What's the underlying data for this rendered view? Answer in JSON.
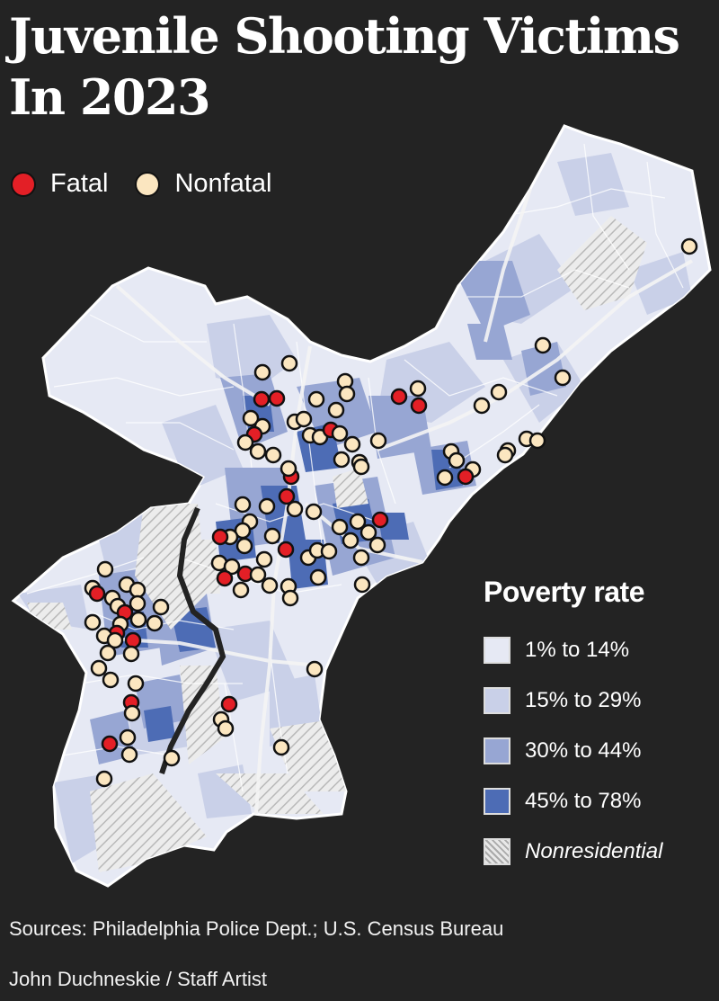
{
  "title_line1": "Juvenile Shooting Victims",
  "title_line2": "In 2023",
  "legend": {
    "fatal_label": "Fatal",
    "nonfatal_label": "Nonfatal",
    "fatal_color": "#e31f26",
    "nonfatal_color": "#fbe6c0"
  },
  "poverty": {
    "title": "Poverty rate",
    "items": [
      {
        "label": "1% to 14%",
        "color": "#e6e9f4"
      },
      {
        "label": "15% to 29%",
        "color": "#c9d0e8"
      },
      {
        "label": "30% to 44%",
        "color": "#97a6d3"
      },
      {
        "label": "45% to 78%",
        "color": "#4d6cb5"
      },
      {
        "label": "Nonresidential",
        "color": "#e4e4e4"
      }
    ]
  },
  "sources": "Sources: Philadelphia Police Dept.; U.S. Census Bureau",
  "credit": "John Duchneskie / Staff Artist"
}
